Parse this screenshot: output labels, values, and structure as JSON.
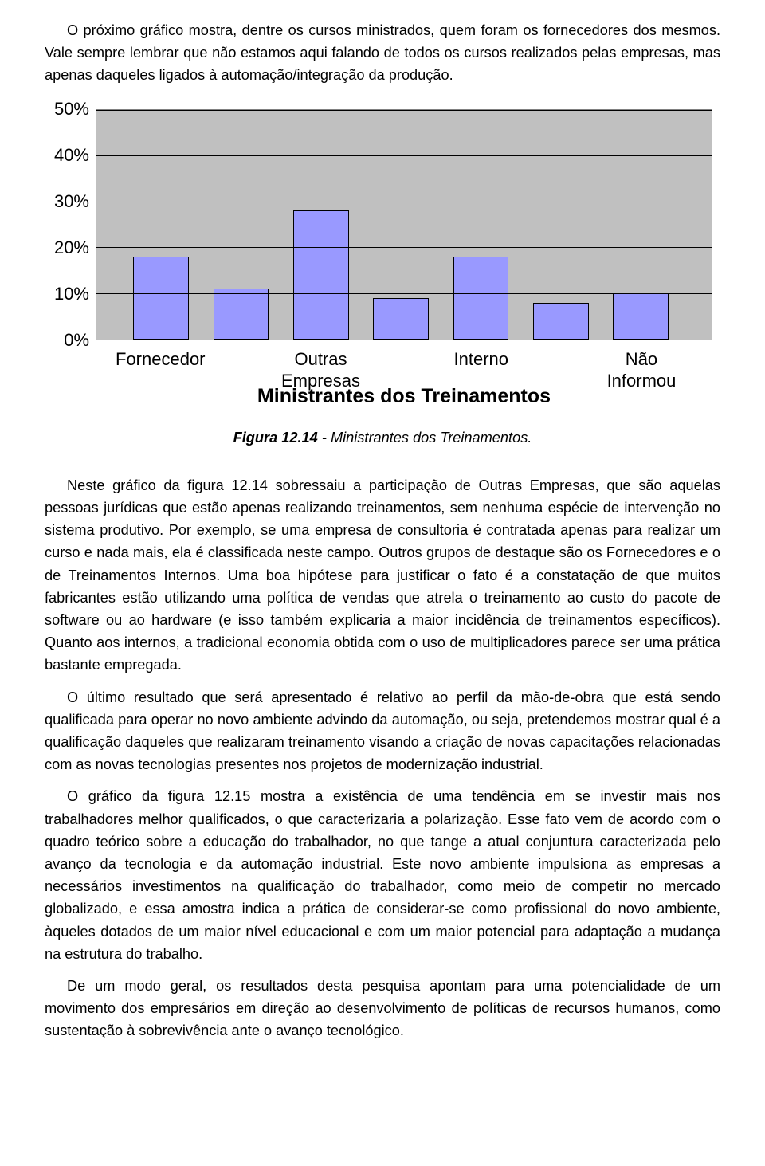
{
  "intro_paragraphs": [
    "O próximo gráfico mostra, dentre os cursos ministrados, quem foram os fornecedores dos mesmos. Vale sempre lembrar que não estamos aqui falando de todos os cursos realizados pelas empresas, mas apenas daqueles ligados à automação/integração da produção."
  ],
  "chart": {
    "type": "bar",
    "title": "Ministrantes dos Treinamentos",
    "background_color": "#c0c0c0",
    "grid_color": "#000000",
    "bar_fill": "#9999ff",
    "bar_border": "#000000",
    "ylim": [
      0,
      50
    ],
    "ytick_step": 10,
    "yticks": [
      "0%",
      "10%",
      "20%",
      "30%",
      "40%",
      "50%"
    ],
    "categories": [
      "Fornecedor",
      "Outras\nEmpresas",
      "Interno",
      "Não\nInformou"
    ],
    "bars": [
      {
        "center_pct": 10.5,
        "width_pct": 9,
        "value": 18
      },
      {
        "center_pct": 23.5,
        "width_pct": 9,
        "value": 11
      },
      {
        "center_pct": 36.5,
        "width_pct": 9,
        "value": 28
      },
      {
        "center_pct": 49.5,
        "width_pct": 9,
        "value": 9
      },
      {
        "center_pct": 62.5,
        "width_pct": 9,
        "value": 18
      },
      {
        "center_pct": 75.5,
        "width_pct": 9,
        "value": 8
      },
      {
        "center_pct": 88.5,
        "width_pct": 9,
        "value": 10
      }
    ],
    "xlabel_centers_pct": [
      10.5,
      36.5,
      62.5,
      88.5
    ],
    "title_fontsize": 25,
    "axis_fontsize": 22
  },
  "caption": {
    "label": "Figura 12.14",
    "sep": " - ",
    "text": "Ministrantes dos Treinamentos."
  },
  "body_paragraphs": [
    "Neste gráfico da figura 12.14 sobressaiu a participação de Outras Empresas, que são aquelas pessoas jurídicas que estão apenas realizando treinamentos, sem nenhuma espécie de intervenção no sistema produtivo. Por exemplo, se uma empresa de consultoria é contratada apenas para realizar um curso e nada mais, ela é classificada neste campo. Outros grupos de destaque são os Fornecedores e o de Treinamentos Internos. Uma boa hipótese para justificar o fato é a constatação de que muitos fabricantes estão utilizando uma política de vendas que atrela o treinamento ao custo do pacote de software ou ao hardware (e isso também explicaria a maior incidência de treinamentos específicos). Quanto aos internos, a tradicional economia obtida com o uso de multiplicadores parece ser uma prática bastante empregada.",
    "O último resultado que será apresentado é relativo ao perfil da mão-de-obra que está sendo qualificada para operar no novo ambiente advindo da automação, ou seja, pretendemos mostrar qual é a qualificação daqueles que realizaram treinamento visando a criação de novas capacitações relacionadas com as novas tecnologias presentes nos projetos de modernização industrial.",
    "O gráfico da figura 12.15 mostra a existência de uma tendência em se investir mais nos trabalhadores melhor qualificados, o que caracterizaria a polarização. Esse fato vem de acordo com o quadro teórico sobre a educação do trabalhador, no que tange a atual conjuntura caracterizada pelo avanço da tecnologia e da automação industrial. Este novo ambiente impulsiona as empresas a necessários investimentos na qualificação do trabalhador, como meio de competir no mercado globalizado, e essa amostra indica a prática de considerar-se como profissional do novo ambiente, àqueles dotados de um maior nível educacional e com um maior potencial para adaptação a mudança na estrutura do trabalho.",
    "De um modo geral, os resultados desta pesquisa apontam para uma potencialidade de um movimento dos empresários em direção ao desenvolvimento de políticas de recursos humanos, como sustentação à sobrevivência ante o avanço tecnológico."
  ]
}
